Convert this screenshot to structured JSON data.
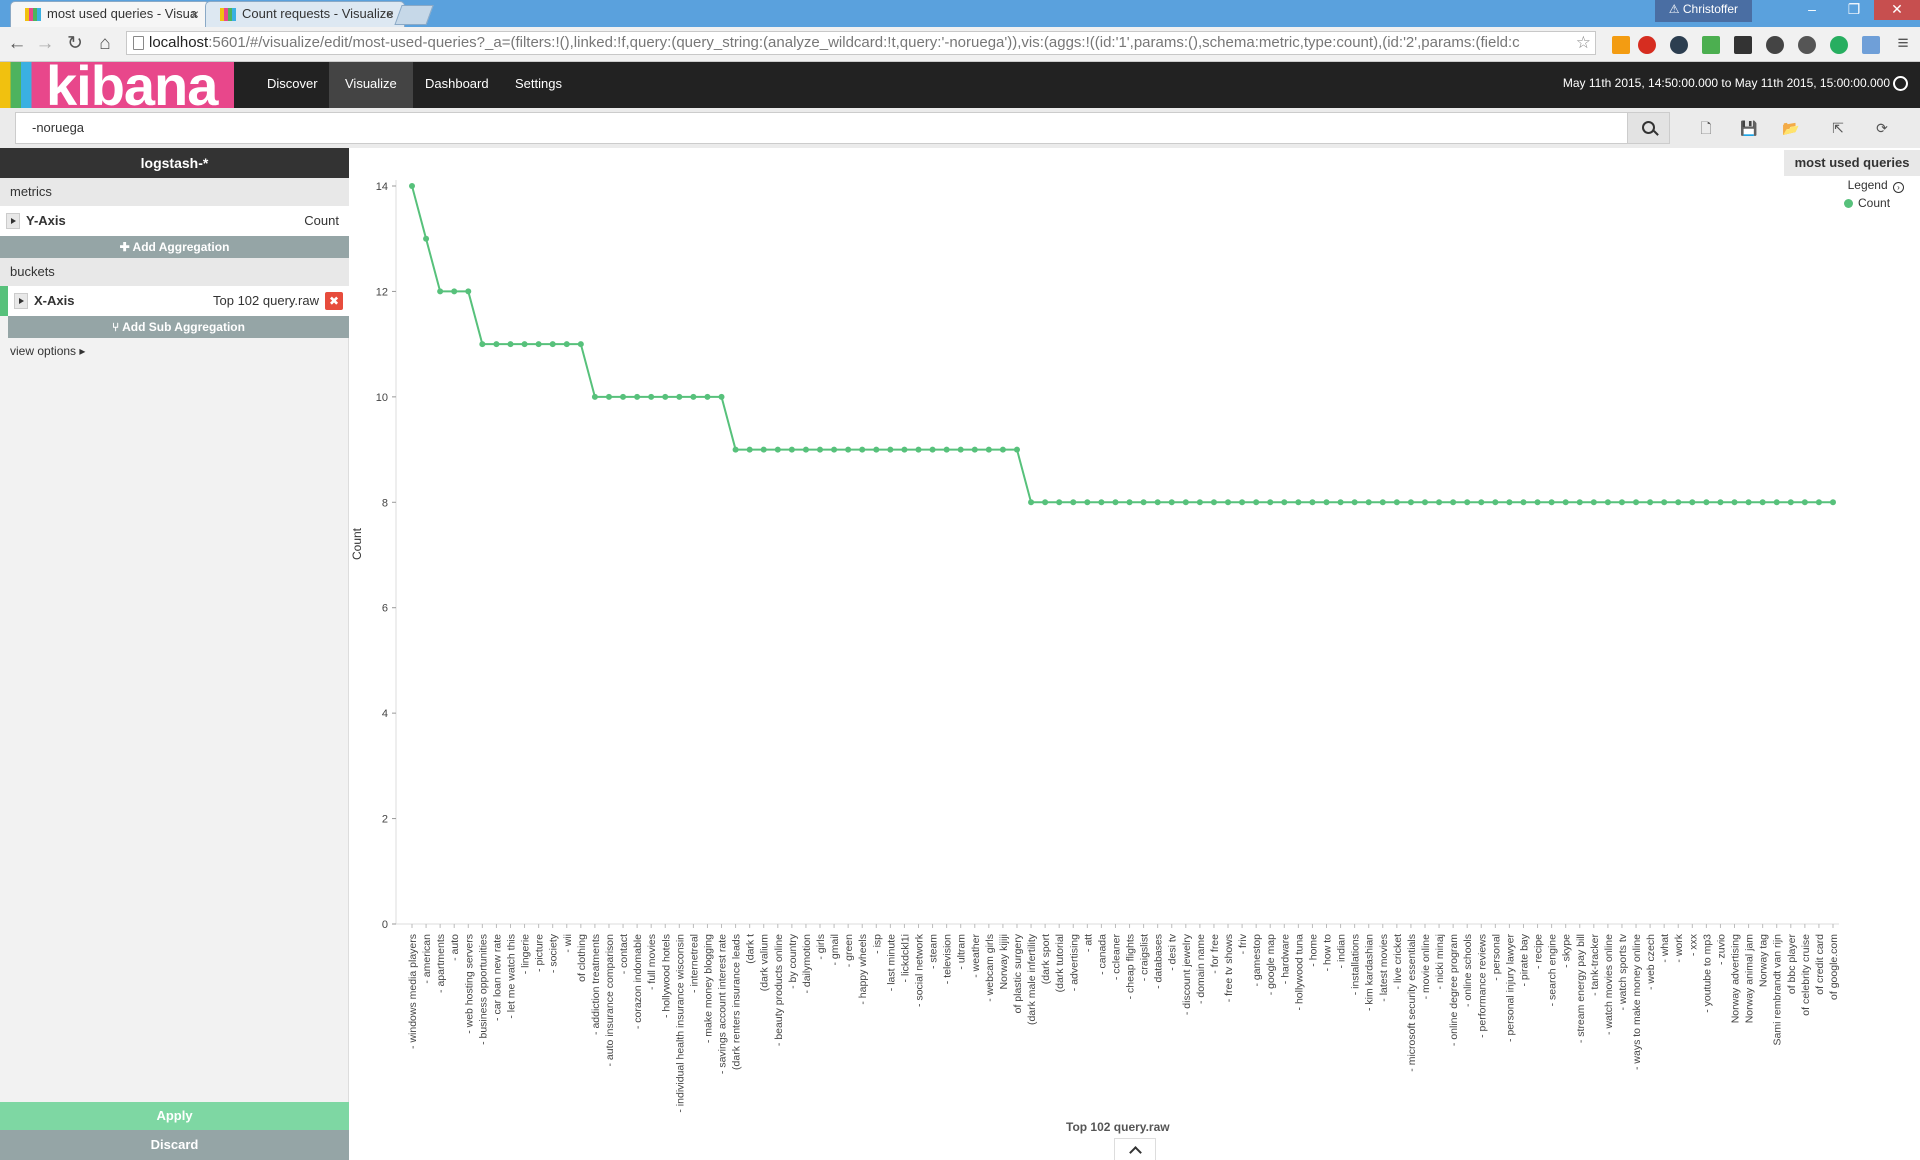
{
  "browser": {
    "tabs": [
      {
        "label": "most used queries - Visua",
        "active": true
      },
      {
        "label": "Count requests - Visualize",
        "active": false
      }
    ],
    "user": "Christoffer",
    "url_host": "localhost",
    "url_path": ":5601/#/visualize/edit/most-used-queries?_a=(filters:!(),linked:!f,query:(query_string:(analyze_wildcard:!t,query:'-noruega')),vis:(aggs:!((id:'1',params:(),schema:metric,type:count),(id:'2',params:(field:c"
  },
  "kibana": {
    "logo": "kibana",
    "nav": [
      "Discover",
      "Visualize",
      "Dashboard",
      "Settings"
    ],
    "active_nav": "Visualize",
    "time_range": "May 11th 2015, 14:50:00.000 to May 11th 2015, 15:00:00.000"
  },
  "query": {
    "value": "-noruega"
  },
  "sidebar": {
    "index_pattern": "logstash-*",
    "metrics_label": "metrics",
    "y_axis_label": "Y-Axis",
    "y_axis_value": "Count",
    "add_aggregation": "Add Aggregation",
    "buckets_label": "buckets",
    "x_axis_label": "X-Axis",
    "x_axis_value": "Top 102 query.raw",
    "add_sub_aggregation": "Add Sub Aggregation",
    "view_options": "view options",
    "apply": "Apply",
    "discard": "Discard"
  },
  "vis": {
    "title": "most used queries",
    "legend_label": "Legend",
    "legend_items": [
      "Count"
    ],
    "accent": "#57c17b"
  },
  "chart_data": {
    "type": "line",
    "xlabel": "Top 102 query.raw",
    "ylabel": "Count",
    "ylim": [
      0,
      14
    ],
    "yticks": [
      0,
      2,
      4,
      6,
      8,
      10,
      12,
      14
    ],
    "series": [
      {
        "name": "Count"
      }
    ],
    "categories": [
      "- windows media players",
      "- american",
      "- apartments",
      "- auto",
      "- web hosting servers",
      "- business opportunities",
      "- car loan new rate",
      "- let me watch this",
      "- lingerie",
      "- picture",
      "- society",
      "- wii",
      "of clothing",
      "- addiction treatments",
      "- auto insurance comparison",
      "- contact",
      "- corazon indomable",
      "- full movies",
      "- hollywood hotels",
      "- individual health insurance wisconsin",
      "- internetreal",
      "- make money blogging",
      "- savings account interest rate",
      "(dark renters insurance leads",
      "(dark t",
      "(dark valium",
      "- beauty products online",
      "- by country",
      "- dailymotion",
      "- girls",
      "- gmail",
      "- green",
      "- happy wheels",
      "- isp",
      "- last minute",
      "- lickdckl1i",
      "- social network",
      "- steam",
      "- television",
      "- ultram",
      "- weather",
      "- webcam girls",
      "Norway kijiji",
      "of plastic surgery",
      "(dark male infertility",
      "(dark sport",
      "(dark tutorial",
      "- advertising",
      "- att",
      "- canada",
      "- ccleaner",
      "- cheap flights",
      "- craigslist",
      "- databases",
      "- desi tv",
      "- discount jewelry",
      "- domain name",
      "- for free",
      "- free tv shows",
      "- friv",
      "- gamestop",
      "- google map",
      "- hardware",
      "- hollywood tuna",
      "- home",
      "- how to",
      "- indian",
      "- installations",
      "- kim kardashian",
      "- latest movies",
      "- live cricket",
      "- microsoft security essentials",
      "- movie online",
      "- nicki minaj",
      "- online degree program",
      "- online schools",
      "- performance reviews",
      "- personal",
      "- personal injury lawyer",
      "- pirate bay",
      "- recipe",
      "- search engine",
      "- skype",
      "- stream energy pay bill",
      "- tank-tracker",
      "- watch movies online",
      "- watch sports tv",
      "- ways to make money online",
      "- web czech",
      "- what",
      "- work",
      "- xxx",
      "- youtube to mp3",
      "- zuvio",
      "Norway advertising",
      "Norway animal jam",
      "Norway tag",
      "Sami rembrandt van rijn",
      "of bbc player",
      "of celebrity cruise",
      "of credit card",
      "of google.com"
    ],
    "values": [
      14,
      13,
      12,
      12,
      12,
      11,
      11,
      11,
      11,
      11,
      11,
      11,
      11,
      10,
      10,
      10,
      10,
      10,
      10,
      10,
      10,
      10,
      10,
      9,
      9,
      9,
      9,
      9,
      9,
      9,
      9,
      9,
      9,
      9,
      9,
      9,
      9,
      9,
      9,
      9,
      9,
      9,
      9,
      9,
      8,
      8,
      8,
      8,
      8,
      8,
      8,
      8,
      8,
      8,
      8,
      8,
      8,
      8,
      8,
      8,
      8,
      8,
      8,
      8,
      8,
      8,
      8,
      8,
      8,
      8,
      8,
      8,
      8,
      8,
      8,
      8,
      8,
      8,
      8,
      8,
      8,
      8,
      8,
      8,
      8,
      8,
      8,
      8,
      8,
      8,
      8,
      8,
      8,
      8,
      8,
      8,
      8,
      8,
      8,
      8,
      8,
      8
    ]
  }
}
